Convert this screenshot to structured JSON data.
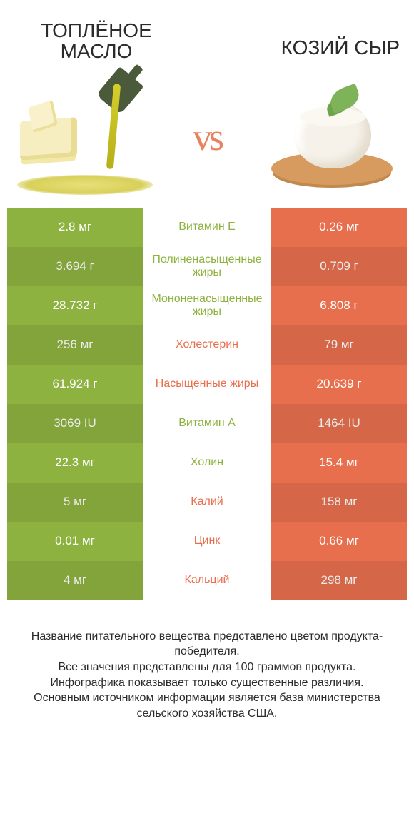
{
  "colors": {
    "green": "#8eb23f",
    "orange": "#e86f4d",
    "green_text": "#8eb23f",
    "orange_text": "#e86f4d",
    "bg": "#ffffff"
  },
  "header": {
    "left_title": "ТОПЛЁНОЕ МАСЛО",
    "right_title": "КОЗИЙ СЫР",
    "vs": "vs"
  },
  "rows": [
    {
      "nutrient": "Витамин E",
      "left": "2.8 мг",
      "right": "0.26 мг",
      "winner": "left"
    },
    {
      "nutrient": "Полиненасыщенные жиры",
      "left": "3.694 г",
      "right": "0.709 г",
      "winner": "left"
    },
    {
      "nutrient": "Мононенасыщенные жиры",
      "left": "28.732 г",
      "right": "6.808 г",
      "winner": "left"
    },
    {
      "nutrient": "Холестерин",
      "left": "256 мг",
      "right": "79 мг",
      "winner": "right"
    },
    {
      "nutrient": "Насыщенные жиры",
      "left": "61.924 г",
      "right": "20.639 г",
      "winner": "right"
    },
    {
      "nutrient": "Витамин A",
      "left": "3069 IU",
      "right": "1464 IU",
      "winner": "left"
    },
    {
      "nutrient": "Холин",
      "left": "22.3 мг",
      "right": "15.4 мг",
      "winner": "left"
    },
    {
      "nutrient": "Калий",
      "left": "5 мг",
      "right": "158 мг",
      "winner": "right"
    },
    {
      "nutrient": "Цинк",
      "left": "0.01 мг",
      "right": "0.66 мг",
      "winner": "right"
    },
    {
      "nutrient": "Кальций",
      "left": "4 мг",
      "right": "298 мг",
      "winner": "right"
    }
  ],
  "footer": {
    "l1": "Название питательного вещества представлено цветом продукта-победителя.",
    "l2": "Все значения представлены для 100 граммов продукта.",
    "l3": "Инфографика показывает только существенные различия.",
    "l4": "Основным источником информации является база министерства сельского хозяйства США."
  }
}
